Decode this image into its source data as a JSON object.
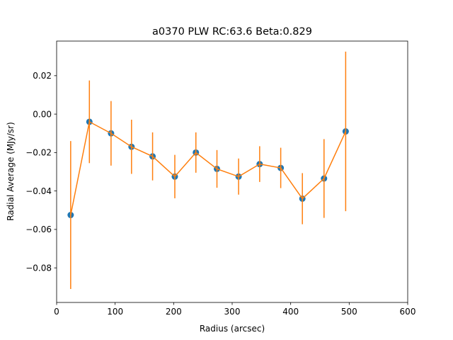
{
  "chart_data": {
    "type": "scatter",
    "title": "a0370  PLW  RC:63.6  Beta:0.829",
    "xlabel": "Radius (arcsec)",
    "ylabel": "Radial Average (MJy/sr)",
    "xlim": [
      0,
      600
    ],
    "ylim": [
      -0.098,
      0.038
    ],
    "xticks": [
      0,
      100,
      200,
      300,
      400,
      500,
      600
    ],
    "xtick_labels": [
      "0",
      "100",
      "200",
      "300",
      "400",
      "500",
      "600"
    ],
    "yticks": [
      -0.08,
      -0.06,
      -0.04,
      -0.02,
      0.0,
      0.02
    ],
    "ytick_labels": [
      "−0.08",
      "−0.06",
      "−0.04",
      "−0.02",
      "0.00",
      "0.02"
    ],
    "grid": false,
    "marker_color": "#1f77b4",
    "line_color": "#ff7f0e",
    "x": [
      24,
      56,
      93,
      128,
      164,
      202,
      238,
      274,
      311,
      347,
      383,
      420,
      457,
      494
    ],
    "y": [
      -0.0525,
      -0.004,
      -0.01,
      -0.017,
      -0.022,
      -0.0325,
      -0.02,
      -0.0285,
      -0.0325,
      -0.026,
      -0.028,
      -0.044,
      -0.0335,
      -0.009
    ],
    "yerr": [
      0.0385,
      0.0215,
      0.0168,
      0.0141,
      0.0125,
      0.0113,
      0.0105,
      0.0098,
      0.0094,
      0.0093,
      0.0105,
      0.0133,
      0.0205,
      0.0415
    ]
  }
}
